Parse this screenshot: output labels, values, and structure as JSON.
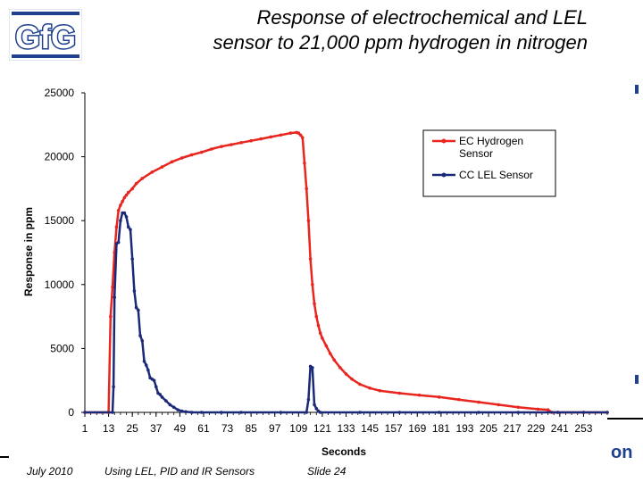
{
  "logo": {
    "text": "GfG",
    "color": "#1f3f8f"
  },
  "title": {
    "line1": "Response of electrochemical and LEL",
    "line2": "sensor to 21,000 ppm hydrogen in nitrogen"
  },
  "footer": {
    "date": "July 2010",
    "subject": "Using LEL, PID and IR Sensors",
    "slide": "Slide 24",
    "corner_mark": "on"
  },
  "chart_data": {
    "type": "line",
    "title": "",
    "xlabel": "Seconds",
    "ylabel": "Response in ppm",
    "xlim": [
      1,
      265
    ],
    "ylim": [
      0,
      25000
    ],
    "x_ticks": [
      1,
      13,
      25,
      37,
      49,
      61,
      73,
      85,
      97,
      109,
      121,
      133,
      145,
      157,
      169,
      181,
      193,
      205,
      217,
      229,
      241,
      253
    ],
    "y_ticks": [
      0,
      5000,
      10000,
      15000,
      20000,
      25000
    ],
    "grid": false,
    "legend": "top-right",
    "series": [
      {
        "name": "EC Hydrogen Sensor",
        "color": "#e8251f",
        "x": [
          1,
          13,
          14,
          15,
          16,
          17,
          18,
          19,
          20,
          21,
          22,
          23,
          25,
          27,
          30,
          35,
          40,
          45,
          50,
          55,
          60,
          65,
          70,
          75,
          80,
          85,
          90,
          95,
          100,
          105,
          108,
          109,
          110,
          111,
          112,
          113,
          114,
          115,
          116,
          117,
          118,
          119,
          120,
          121,
          123,
          125,
          127,
          130,
          133,
          136,
          140,
          145,
          150,
          160,
          170,
          180,
          190,
          200,
          210,
          220,
          230,
          235,
          237,
          240,
          253,
          265
        ],
        "y": [
          0,
          0,
          7500,
          9800,
          12500,
          14500,
          15800,
          16200,
          16500,
          16800,
          17000,
          17200,
          17500,
          17900,
          18300,
          18800,
          19200,
          19600,
          19900,
          20150,
          20350,
          20600,
          20800,
          20950,
          21100,
          21250,
          21400,
          21550,
          21700,
          21850,
          21900,
          21850,
          21700,
          21500,
          19500,
          17500,
          15000,
          12000,
          10000,
          8500,
          7500,
          6800,
          6200,
          5800,
          5200,
          4600,
          4100,
          3500,
          3000,
          2600,
          2200,
          1900,
          1700,
          1500,
          1350,
          1200,
          1000,
          800,
          600,
          400,
          250,
          200,
          0,
          0,
          0,
          0
        ]
      },
      {
        "name": "CC LEL Sensor",
        "color": "#1b2a78",
        "x": [
          1,
          15,
          15.5,
          16,
          17,
          18,
          19,
          20,
          21,
          22,
          23,
          24,
          25,
          26,
          27,
          28,
          29,
          30,
          31,
          32,
          33,
          34,
          35,
          36,
          37,
          38,
          39,
          40,
          42,
          44,
          46,
          48,
          50,
          52,
          55,
          60,
          70,
          80,
          100,
          113,
          114,
          115,
          116,
          117,
          118,
          119,
          120,
          140,
          160,
          180,
          200,
          220,
          240,
          253,
          265
        ],
        "y": [
          0,
          0,
          2000,
          9000,
          13200,
          13300,
          15000,
          15600,
          15600,
          15300,
          14500,
          14300,
          12000,
          9500,
          8200,
          8000,
          6000,
          5600,
          4000,
          3700,
          3300,
          2700,
          2600,
          2500,
          2000,
          1500,
          1400,
          1200,
          900,
          600,
          400,
          200,
          100,
          50,
          0,
          0,
          0,
          0,
          0,
          0,
          1000,
          3600,
          3500,
          600,
          300,
          100,
          0,
          0,
          0,
          0,
          0,
          0,
          0,
          0,
          0
        ]
      }
    ]
  }
}
